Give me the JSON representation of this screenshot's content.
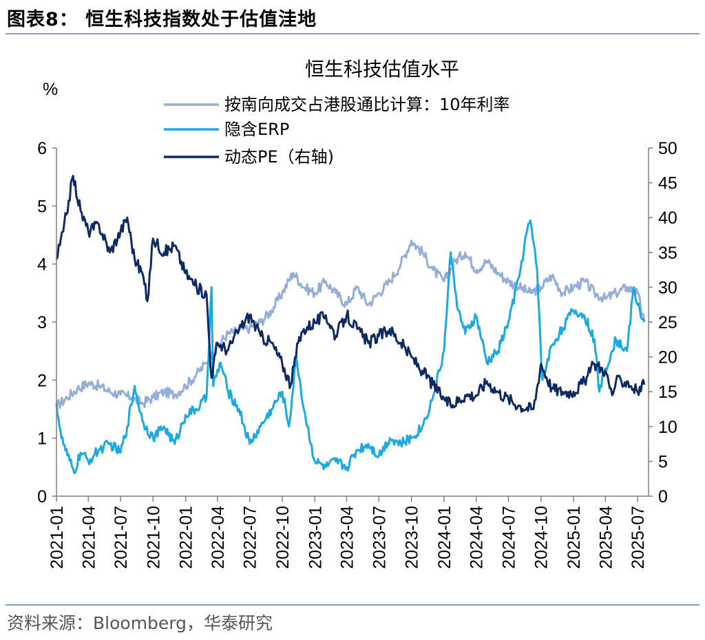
{
  "figure": {
    "title": "图表8： 恒生科技指数处于估值洼地",
    "source": "资料来源：Bloomberg，华泰研究"
  },
  "chart_data": {
    "type": "line",
    "title": "恒生科技估值水平",
    "ylabel_left": "%",
    "ylim_left": [
      0,
      6
    ],
    "yticks_left": [
      "0",
      "1",
      "2",
      "3",
      "4",
      "5",
      "6"
    ],
    "ylim_right": [
      0,
      50
    ],
    "yticks_right": [
      "0",
      "5",
      "10",
      "15",
      "20",
      "25",
      "30",
      "35",
      "40",
      "45",
      "50"
    ],
    "x_range": [
      "2021-01",
      "2025-08"
    ],
    "xticks": [
      "2021-01",
      "2021-04",
      "2021-07",
      "2021-10",
      "2022-01",
      "2022-04",
      "2022-07",
      "2022-10",
      "2023-01",
      "2023-04",
      "2023-07",
      "2023-10",
      "2024-01",
      "2024-04",
      "2024-07",
      "2024-10",
      "2025-01",
      "2025-04",
      "2025-07"
    ],
    "legend_position": "top-center",
    "colors": {
      "rate": "#94aedb",
      "erp": "#1aa9e3",
      "pe": "#0d2a64"
    },
    "series": [
      {
        "name": "按南向成交占港股通比计算：10年利率",
        "axis": "left",
        "color": "#94aedb",
        "points": [
          [
            "2021-01-01",
            1.55
          ],
          [
            "2021-02-01",
            1.7
          ],
          [
            "2021-03-01",
            1.85
          ],
          [
            "2021-04-01",
            1.95
          ],
          [
            "2021-05-01",
            1.9
          ],
          [
            "2021-06-01",
            1.8
          ],
          [
            "2021-07-01",
            1.75
          ],
          [
            "2021-08-01",
            1.7
          ],
          [
            "2021-09-01",
            1.6
          ],
          [
            "2021-10-01",
            1.7
          ],
          [
            "2021-11-01",
            1.8
          ],
          [
            "2021-12-01",
            1.75
          ],
          [
            "2022-01-01",
            1.9
          ],
          [
            "2022-02-01",
            2.1
          ],
          [
            "2022-03-01",
            2.3
          ],
          [
            "2022-04-01",
            2.6
          ],
          [
            "2022-05-01",
            2.8
          ],
          [
            "2022-06-01",
            2.85
          ],
          [
            "2022-07-01",
            2.9
          ],
          [
            "2022-08-01",
            3.0
          ],
          [
            "2022-09-01",
            3.2
          ],
          [
            "2022-10-01",
            3.5
          ],
          [
            "2022-11-01",
            3.85
          ],
          [
            "2022-12-01",
            3.6
          ],
          [
            "2023-01-01",
            3.5
          ],
          [
            "2023-02-01",
            3.7
          ],
          [
            "2023-03-01",
            3.5
          ],
          [
            "2023-04-01",
            3.3
          ],
          [
            "2023-05-01",
            3.6
          ],
          [
            "2023-06-01",
            3.3
          ],
          [
            "2023-07-01",
            3.5
          ],
          [
            "2023-08-01",
            3.7
          ],
          [
            "2023-09-01",
            4.0
          ],
          [
            "2023-10-01",
            4.4
          ],
          [
            "2023-11-01",
            4.2
          ],
          [
            "2023-12-01",
            3.9
          ],
          [
            "2024-01-01",
            3.7
          ],
          [
            "2024-02-01",
            4.05
          ],
          [
            "2024-03-01",
            4.2
          ],
          [
            "2024-04-01",
            3.9
          ],
          [
            "2024-05-01",
            4.05
          ],
          [
            "2024-06-01",
            3.85
          ],
          [
            "2024-07-01",
            3.7
          ],
          [
            "2024-08-01",
            3.6
          ],
          [
            "2024-09-01",
            3.5
          ],
          [
            "2024-10-01",
            3.6
          ],
          [
            "2024-11-01",
            3.8
          ],
          [
            "2024-12-01",
            3.5
          ],
          [
            "2025-01-01",
            3.6
          ],
          [
            "2025-02-01",
            3.7
          ],
          [
            "2025-03-01",
            3.5
          ],
          [
            "2025-04-01",
            3.4
          ],
          [
            "2025-05-01",
            3.5
          ],
          [
            "2025-06-01",
            3.6
          ],
          [
            "2025-07-01",
            3.5
          ],
          [
            "2025-07-20",
            3.0
          ]
        ]
      },
      {
        "name": "隐含ERP",
        "axis": "left",
        "color": "#1aa9e3",
        "points": [
          [
            "2021-01-01",
            1.6
          ],
          [
            "2021-01-15",
            1.0
          ],
          [
            "2021-02-01",
            0.7
          ],
          [
            "2021-02-20",
            0.4
          ],
          [
            "2021-03-10",
            0.75
          ],
          [
            "2021-04-01",
            0.6
          ],
          [
            "2021-05-01",
            0.8
          ],
          [
            "2021-06-01",
            0.9
          ],
          [
            "2021-07-01",
            0.75
          ],
          [
            "2021-07-20",
            1.2
          ],
          [
            "2021-08-10",
            1.9
          ],
          [
            "2021-09-01",
            1.3
          ],
          [
            "2021-10-01",
            1.0
          ],
          [
            "2021-11-01",
            1.2
          ],
          [
            "2021-12-01",
            0.9
          ],
          [
            "2022-01-01",
            1.4
          ],
          [
            "2022-02-01",
            1.5
          ],
          [
            "2022-03-01",
            1.7
          ],
          [
            "2022-03-15",
            3.6
          ],
          [
            "2022-03-20",
            1.9
          ],
          [
            "2022-04-10",
            2.3
          ],
          [
            "2022-05-01",
            1.8
          ],
          [
            "2022-06-01",
            1.5
          ],
          [
            "2022-07-01",
            0.9
          ],
          [
            "2022-08-01",
            1.2
          ],
          [
            "2022-09-01",
            1.5
          ],
          [
            "2022-10-01",
            1.8
          ],
          [
            "2022-10-20",
            1.2
          ],
          [
            "2022-11-10",
            2.4
          ],
          [
            "2022-12-01",
            1.5
          ],
          [
            "2023-01-01",
            0.6
          ],
          [
            "2023-02-01",
            0.5
          ],
          [
            "2023-03-01",
            0.6
          ],
          [
            "2023-04-01",
            0.5
          ],
          [
            "2023-05-01",
            0.8
          ],
          [
            "2023-06-01",
            0.9
          ],
          [
            "2023-07-01",
            0.7
          ],
          [
            "2023-08-01",
            1.0
          ],
          [
            "2023-09-01",
            0.9
          ],
          [
            "2023-10-01",
            1.0
          ],
          [
            "2023-11-01",
            1.2
          ],
          [
            "2023-12-01",
            1.7
          ],
          [
            "2024-01-01",
            2.5
          ],
          [
            "2024-01-20",
            4.2
          ],
          [
            "2024-02-10",
            3.2
          ],
          [
            "2024-03-01",
            2.8
          ],
          [
            "2024-04-01",
            3.1
          ],
          [
            "2024-05-01",
            2.3
          ],
          [
            "2024-06-01",
            2.5
          ],
          [
            "2024-07-01",
            3.0
          ],
          [
            "2024-08-01",
            3.8
          ],
          [
            "2024-08-20",
            4.5
          ],
          [
            "2024-09-01",
            4.75
          ],
          [
            "2024-09-20",
            3.9
          ],
          [
            "2024-10-05",
            2.0
          ],
          [
            "2024-11-01",
            2.6
          ],
          [
            "2024-12-01",
            2.9
          ],
          [
            "2025-01-01",
            3.2
          ],
          [
            "2025-02-01",
            3.1
          ],
          [
            "2025-03-01",
            2.7
          ],
          [
            "2025-03-15",
            1.8
          ],
          [
            "2025-04-01",
            2.2
          ],
          [
            "2025-05-01",
            2.7
          ],
          [
            "2025-06-01",
            2.5
          ],
          [
            "2025-06-20",
            3.6
          ],
          [
            "2025-07-01",
            3.3
          ],
          [
            "2025-07-20",
            3.0
          ]
        ]
      },
      {
        "name": "动态PE（右轴)",
        "axis": "right",
        "color": "#0d2a64",
        "points": [
          [
            "2021-01-01",
            34
          ],
          [
            "2021-01-20",
            38
          ],
          [
            "2021-02-17",
            46
          ],
          [
            "2021-03-10",
            41
          ],
          [
            "2021-04-01",
            38
          ],
          [
            "2021-05-01",
            39
          ],
          [
            "2021-06-01",
            35
          ],
          [
            "2021-07-01",
            38
          ],
          [
            "2021-07-20",
            40
          ],
          [
            "2021-08-10",
            34
          ],
          [
            "2021-09-01",
            32
          ],
          [
            "2021-09-15",
            28
          ],
          [
            "2021-10-01",
            37
          ],
          [
            "2021-11-01",
            35
          ],
          [
            "2021-12-01",
            36
          ],
          [
            "2022-01-01",
            32
          ],
          [
            "2022-02-01",
            30
          ],
          [
            "2022-03-01",
            29
          ],
          [
            "2022-03-15",
            17
          ],
          [
            "2022-04-01",
            22
          ],
          [
            "2022-05-01",
            21
          ],
          [
            "2022-06-01",
            24
          ],
          [
            "2022-07-01",
            26
          ],
          [
            "2022-08-01",
            23
          ],
          [
            "2022-09-01",
            22
          ],
          [
            "2022-10-01",
            19
          ],
          [
            "2022-10-25",
            16
          ],
          [
            "2022-11-15",
            22
          ],
          [
            "2022-12-01",
            24
          ],
          [
            "2023-01-01",
            25
          ],
          [
            "2023-02-01",
            26
          ],
          [
            "2023-03-01",
            23
          ],
          [
            "2023-04-01",
            26
          ],
          [
            "2023-05-01",
            24
          ],
          [
            "2023-06-01",
            22
          ],
          [
            "2023-07-01",
            23
          ],
          [
            "2023-08-01",
            24
          ],
          [
            "2023-09-01",
            22
          ],
          [
            "2023-10-01",
            20
          ],
          [
            "2023-11-01",
            18
          ],
          [
            "2023-12-01",
            16
          ],
          [
            "2024-01-01",
            14
          ],
          [
            "2024-01-20",
            13
          ],
          [
            "2024-03-01",
            14.5
          ],
          [
            "2024-04-01",
            14.5
          ],
          [
            "2024-05-01",
            16.5
          ],
          [
            "2024-06-01",
            15
          ],
          [
            "2024-07-01",
            14
          ],
          [
            "2024-08-01",
            13
          ],
          [
            "2024-09-10",
            12.5
          ],
          [
            "2024-10-01",
            19
          ],
          [
            "2024-11-01",
            15.5
          ],
          [
            "2024-12-01",
            15
          ],
          [
            "2025-01-01",
            15
          ],
          [
            "2025-02-01",
            16.5
          ],
          [
            "2025-03-01",
            19
          ],
          [
            "2025-04-01",
            18
          ],
          [
            "2025-04-20",
            14.5
          ],
          [
            "2025-05-01",
            16.5
          ],
          [
            "2025-06-01",
            16.5
          ],
          [
            "2025-07-01",
            15
          ],
          [
            "2025-07-20",
            16
          ]
        ]
      }
    ]
  }
}
